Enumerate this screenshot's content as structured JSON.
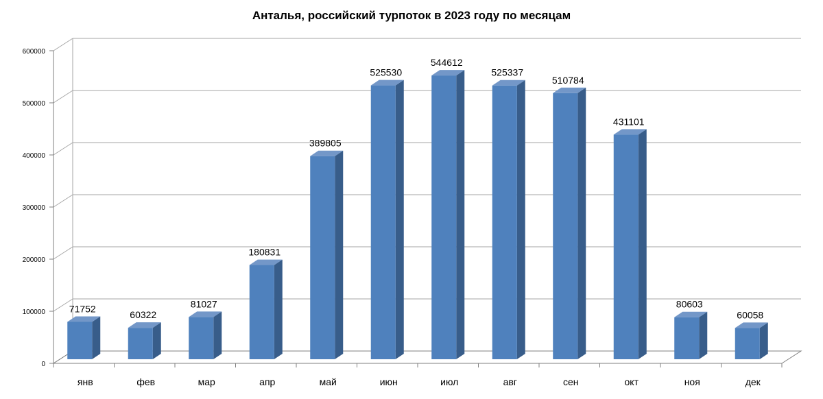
{
  "chart_data": {
    "type": "bar",
    "title": "Анталья, российский турпоток в 2023 году по месяцам",
    "xlabel": "",
    "ylabel": "",
    "categories": [
      "янв",
      "фев",
      "мар",
      "апр",
      "май",
      "июн",
      "июл",
      "авг",
      "сен",
      "окт",
      "ноя",
      "дек"
    ],
    "values": [
      71752,
      60322,
      81027,
      180831,
      389805,
      525530,
      544612,
      525337,
      510784,
      431101,
      80603,
      60058
    ],
    "data_labels": [
      "71752",
      "60322",
      "81027",
      "180831",
      "389805",
      "525530",
      "544612",
      "525337",
      "510784",
      "431101",
      "80603",
      "60058"
    ],
    "ylim": [
      0,
      600000
    ],
    "yticks": [
      0,
      100000,
      200000,
      300000,
      400000,
      500000,
      600000
    ],
    "ytick_labels": [
      "0",
      "100000",
      "200000",
      "300000",
      "400000",
      "500000",
      "600000"
    ],
    "grid": true,
    "legend": "none",
    "style": "3d-column",
    "colors": {
      "bar_front": "#4f81bd",
      "bar_side": "#385d8a",
      "bar_top": "#7397c8",
      "grid": "#a6a6a6",
      "axis": "#7f7f7f"
    }
  }
}
